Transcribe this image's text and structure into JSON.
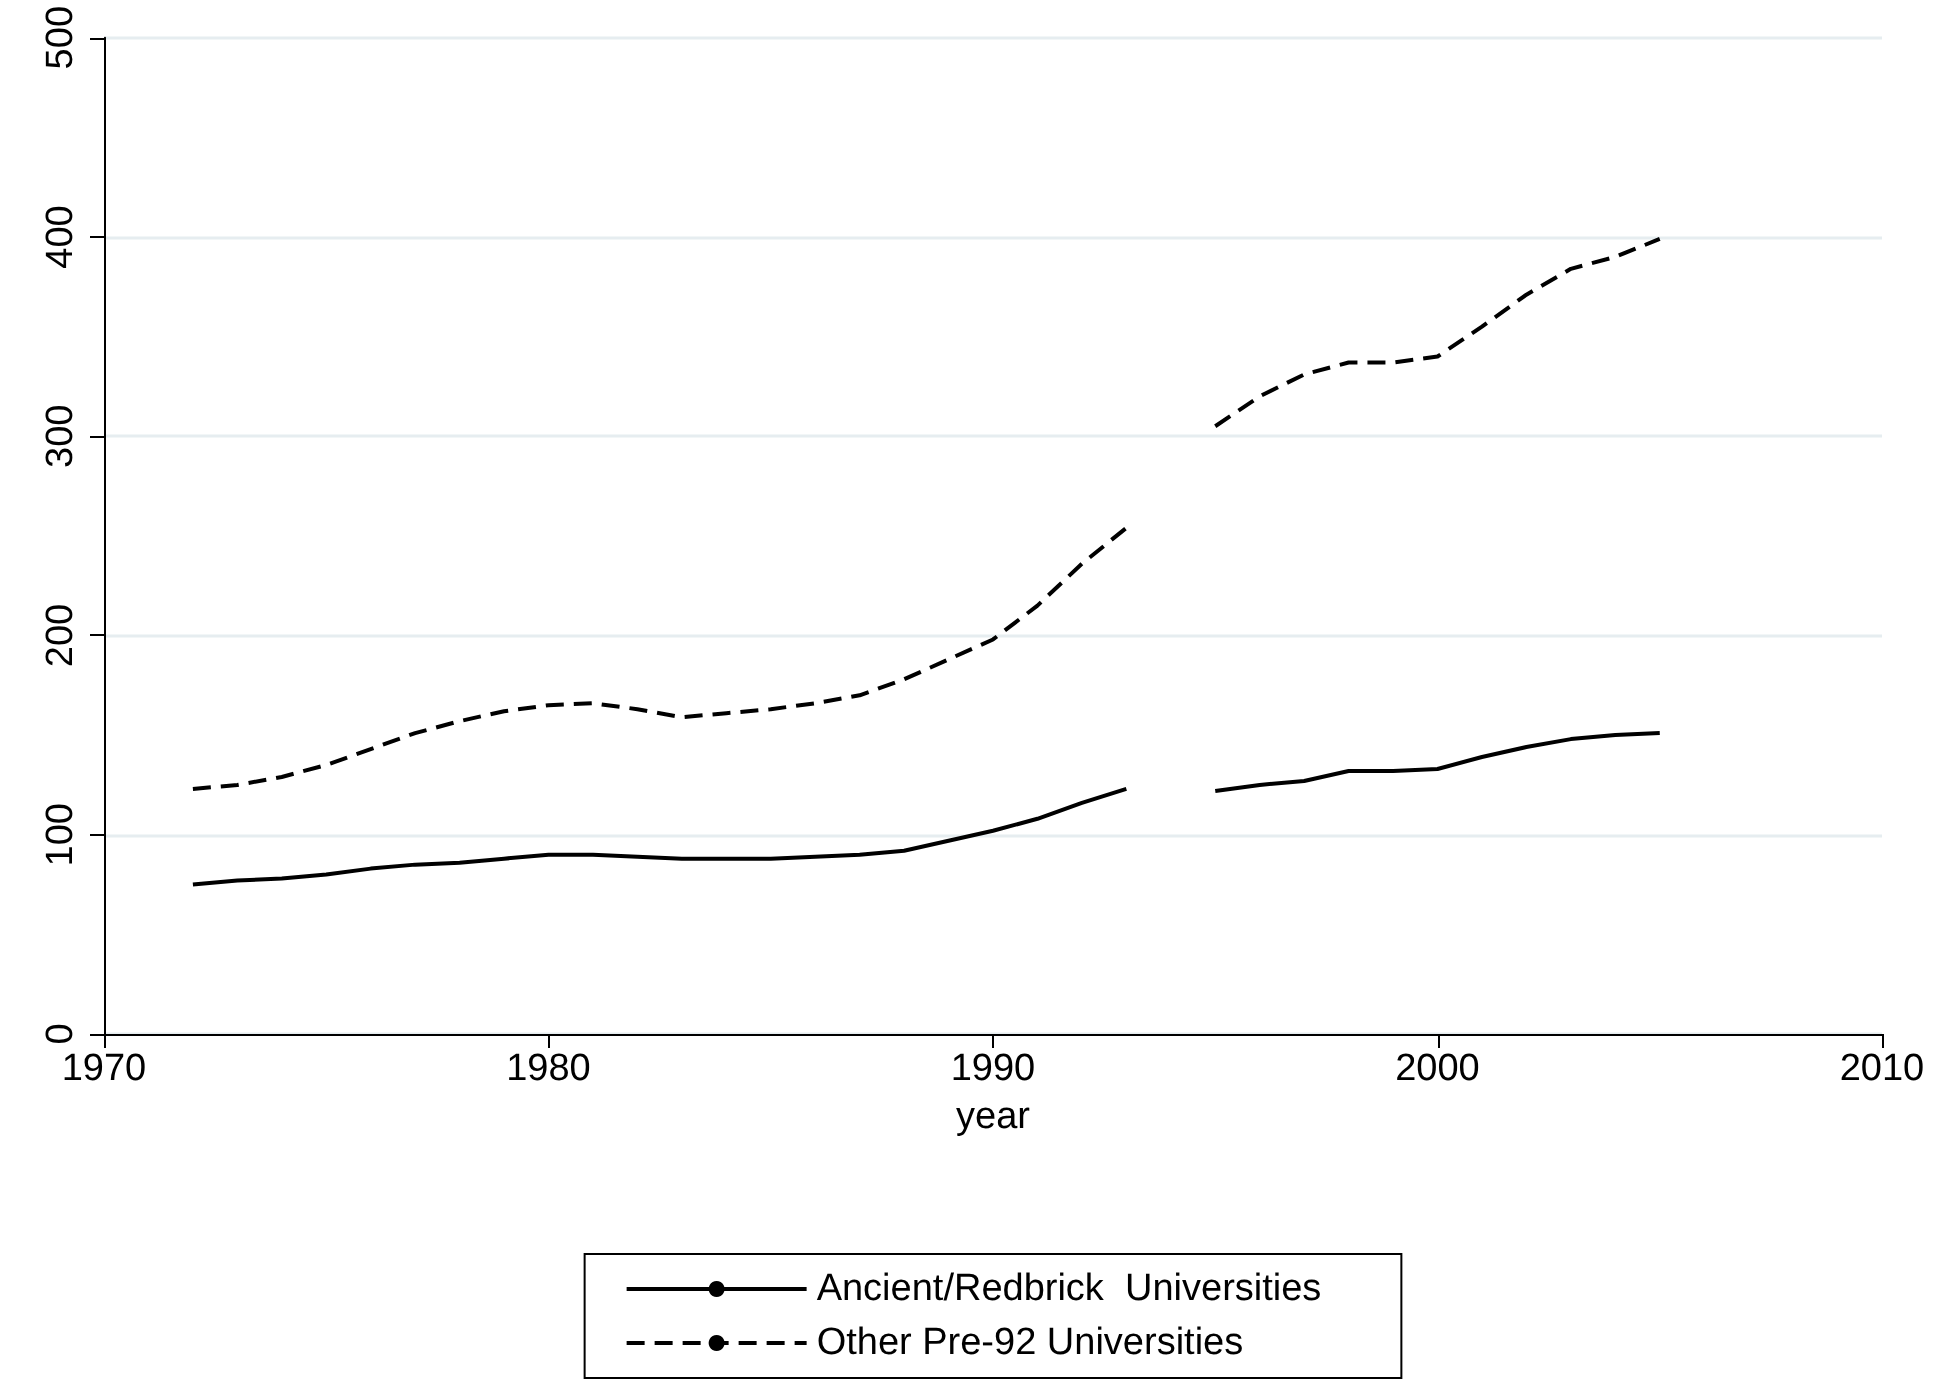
{
  "chart_data": {
    "type": "line",
    "xlabel": "year",
    "x": [
      1972,
      1973,
      1974,
      1975,
      1976,
      1977,
      1978,
      1979,
      1980,
      1981,
      1982,
      1983,
      1984,
      1985,
      1986,
      1987,
      1988,
      1989,
      1990,
      1991,
      1992,
      1993,
      1994,
      1995,
      1996,
      1997,
      1998,
      1999,
      2000,
      2001,
      2002,
      2003,
      2004,
      2005
    ],
    "series": [
      {
        "name": "Ancient/Redbrick  Universities",
        "color": "#000000",
        "line_style": "solid",
        "values": [
          75,
          77,
          78,
          80,
          83,
          85,
          86,
          88,
          90,
          90,
          89,
          88,
          88,
          88,
          89,
          90,
          92,
          97,
          102,
          108,
          116,
          123,
          null,
          122,
          125,
          127,
          132,
          132,
          133,
          139,
          144,
          148,
          150,
          151
        ]
      },
      {
        "name": "Other Pre-92 Universities",
        "color": "#000000",
        "line_style": "dashed",
        "values": [
          123,
          125,
          129,
          135,
          143,
          151,
          157,
          162,
          165,
          166,
          163,
          159,
          161,
          163,
          166,
          170,
          178,
          188,
          198,
          215,
          236,
          254,
          null,
          305,
          320,
          331,
          337,
          337,
          340,
          355,
          371,
          384,
          390,
          399
        ]
      }
    ],
    "xlim": [
      1970,
      2010
    ],
    "xticks": [
      1970,
      1980,
      1990,
      2000,
      2010
    ],
    "ylim": [
      0,
      500
    ],
    "yticks": [
      0,
      100,
      200,
      300,
      400,
      500
    ],
    "grid": "y",
    "legend": "bottom",
    "marker": "none"
  }
}
